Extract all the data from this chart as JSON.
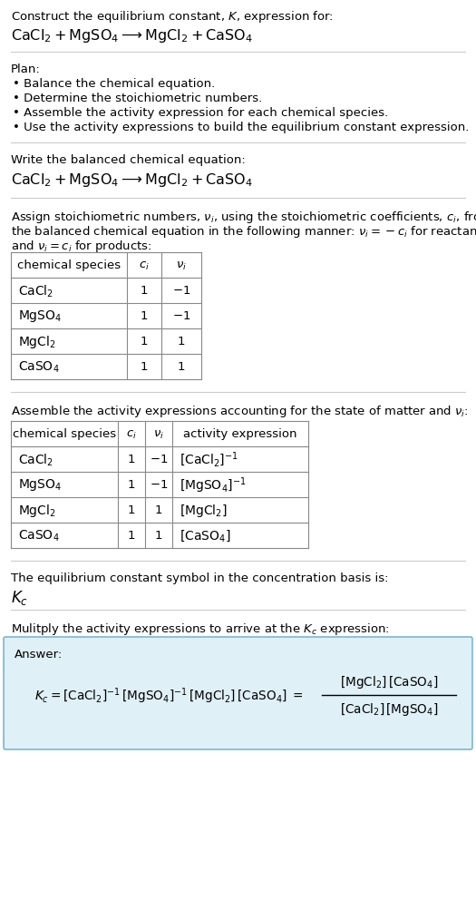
{
  "bg_color": "#ffffff",
  "answer_box_color": "#dff0f7",
  "answer_box_border": "#7ab8d4",
  "separator_color": "#cccccc",
  "table_color": "#888888",
  "sec1_line1": "Construct the equilibrium constant, $K$, expression for:",
  "sec1_line2_parts": [
    "CaCl",
    "2",
    " + MgSO",
    "4",
    " ⟶ MgCl",
    "2",
    " + CaSO",
    "4"
  ],
  "plan_header": "Plan:",
  "plan_bullets": [
    "Balance the chemical equation.",
    "Determine the stoichiometric numbers.",
    "Assemble the activity expression for each chemical species.",
    "Use the activity expressions to build the equilibrium constant expression."
  ],
  "sec3_header": "Write the balanced chemical equation:",
  "stoich_intro_parts": [
    "Assign stoichiometric numbers, ",
    "nu_i",
    ", using the stoichiometric coefficients, ",
    "c_i",
    ", from"
  ],
  "stoich_intro_line2": "the balanced chemical equation in the following manner: ",
  "stoich_intro_line3": "and ",
  "table1_species": [
    "CaCl_2",
    "MgSO_4",
    "MgCl_2",
    "CaSO_4"
  ],
  "table1_ci": [
    "1",
    "1",
    "1",
    "1"
  ],
  "table1_vi": [
    "-1",
    "-1",
    "1",
    "1"
  ],
  "activity_intro": "Assemble the activity expressions accounting for the state of matter and ",
  "table2_species": [
    "CaCl_2",
    "MgSO_4",
    "MgCl_2",
    "CaSO_4"
  ],
  "table2_ci": [
    "1",
    "1",
    "1",
    "1"
  ],
  "table2_vi": [
    "-1",
    "-1",
    "1",
    "1"
  ],
  "table2_activity": [
    "[CaCl_2]^{-1}",
    "[MgSO_4]^{-1}",
    "[MgCl_2]",
    "[CaSO_4]"
  ],
  "kc_text": "The equilibrium constant symbol in the concentration basis is:",
  "multiply_text": "Mulitply the activity expressions to arrive at the ",
  "answer_label": "Answer:"
}
